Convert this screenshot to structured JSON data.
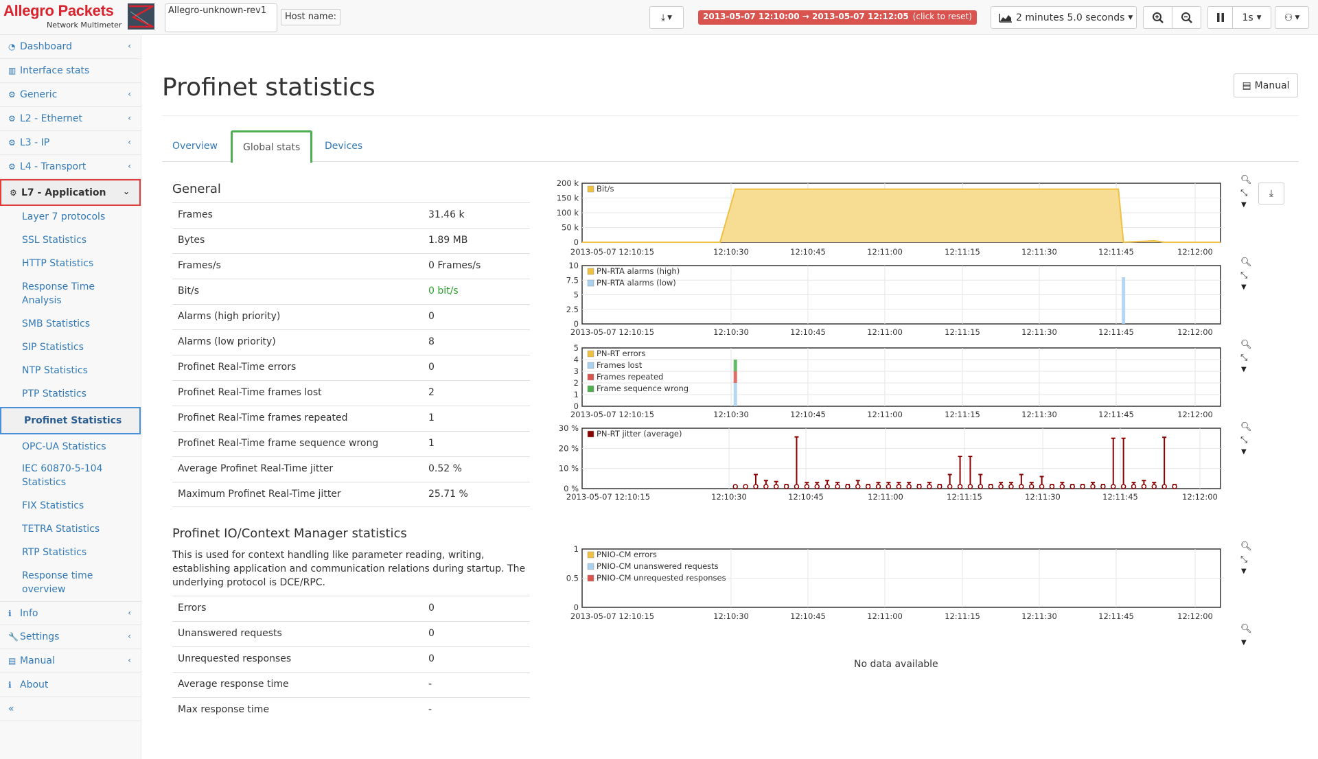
{
  "app": {
    "brand": "Allegro Packets",
    "subtitle": "Network Multimeter",
    "device_name": "Allegro-unknown-rev1",
    "host_label": "Host name:",
    "time_range": "2013-05-07 12:10:00 → 2013-05-07 12:12:05",
    "time_reset": "(click to reset)",
    "duration": "2 minutes 5.0 seconds",
    "interval": "1s"
  },
  "sidebar": {
    "items": [
      {
        "label": "Dashboard",
        "icon": "dashboard-icon"
      },
      {
        "label": "Interface stats",
        "icon": "bar-chart-icon"
      },
      {
        "label": "Generic",
        "icon": "gear-icon"
      },
      {
        "label": "L2 - Ethernet",
        "icon": "gear-icon"
      },
      {
        "label": "L3 - IP",
        "icon": "gear-icon"
      },
      {
        "label": "L4 - Transport",
        "icon": "gear-icon"
      },
      {
        "label": "L7 - Application",
        "icon": "gear-icon"
      },
      {
        "label": "Info",
        "icon": "info-icon"
      },
      {
        "label": "Settings",
        "icon": "wrench-icon"
      },
      {
        "label": "Manual",
        "icon": "book-icon"
      },
      {
        "label": "About",
        "icon": "info-icon"
      }
    ],
    "sub": [
      "Layer 7 protocols",
      "SSL Statistics",
      "HTTP Statistics",
      "Response Time Analysis",
      "SMB Statistics",
      "SIP Statistics",
      "NTP Statistics",
      "PTP Statistics",
      "Profinet Statistics",
      "OPC-UA Statistics",
      "IEC 60870-5-104 Statistics",
      "FIX Statistics",
      "TETRA Statistics",
      "RTP Statistics",
      "Response time overview"
    ],
    "collapse": "«"
  },
  "page": {
    "title": "Profinet statistics",
    "manual_button": "Manual",
    "tabs": [
      "Overview",
      "Global stats",
      "Devices"
    ]
  },
  "general": {
    "title": "General",
    "rows": [
      {
        "k": "Frames",
        "v": "31.46 k"
      },
      {
        "k": "Bytes",
        "v": "1.89 MB"
      },
      {
        "k": "Frames/s",
        "v": "0 Frames/s"
      },
      {
        "k": "Bit/s",
        "v": "0 bit/s"
      },
      {
        "k": "Alarms (high priority)",
        "v": "0"
      },
      {
        "k": "Alarms (low priority)",
        "v": "8"
      },
      {
        "k": "Profinet Real-Time errors",
        "v": "0"
      },
      {
        "k": "Profinet Real-Time frames lost",
        "v": "2"
      },
      {
        "k": "Profinet Real-Time frames repeated",
        "v": "1"
      },
      {
        "k": "Profinet Real-Time frame sequence wrong",
        "v": "1"
      },
      {
        "k": "Average Profinet Real-Time jitter",
        "v": "0.52 %"
      },
      {
        "k": "Maximum Profinet Real-Time jitter",
        "v": "25.71 %"
      }
    ]
  },
  "iocm": {
    "title": "Profinet IO/Context Manager statistics",
    "description": "This is used for context handling like parameter reading, writing, establishing application and communication relations during startup. The underlying protocol is DCE/RPC.",
    "rows": [
      {
        "k": "Errors",
        "v": "0"
      },
      {
        "k": "Unanswered requests",
        "v": "0"
      },
      {
        "k": "Unrequested responses",
        "v": "0"
      },
      {
        "k": "Average response time",
        "v": "-"
      },
      {
        "k": "Max response time",
        "v": "-"
      }
    ]
  },
  "no_data": "No data available",
  "colors": {
    "accent": "#337ab7",
    "yellow": "#f0c040",
    "lightblue": "#a8d0f0",
    "red": "#d9534f",
    "green": "#4cae4c",
    "darkred": "#8b0000"
  },
  "chart_data": [
    {
      "type": "area",
      "x_ticks": [
        "2013-05-07 12:10:15",
        "12:10:30",
        "12:10:45",
        "12:11:00",
        "12:11:15",
        "12:11:30",
        "12:11:45",
        "12:12:00"
      ],
      "y_ticks": [
        "0",
        "50 k",
        "100 k",
        "150 k",
        "200 k"
      ],
      "ylim": [
        0,
        200000
      ],
      "series": [
        {
          "name": "Bit/s",
          "color": "#f0c040",
          "points": [
            [
              0,
              0
            ],
            [
              27,
              0
            ],
            [
              30,
              180000
            ],
            [
              105,
              180000
            ],
            [
              106,
              0
            ],
            [
              112,
              5000
            ],
            [
              114,
              0
            ],
            [
              125,
              0
            ]
          ]
        }
      ]
    },
    {
      "type": "bar",
      "x_ticks": [
        "2013-05-07 12:10:15",
        "12:10:30",
        "12:10:45",
        "12:11:00",
        "12:11:15",
        "12:11:30",
        "12:11:45",
        "12:12:00"
      ],
      "y_ticks": [
        "0",
        "2.5",
        "5",
        "7.5",
        "10"
      ],
      "ylim": [
        0,
        10
      ],
      "series": [
        {
          "name": "PN-RTA alarms (high)",
          "color": "#f0c040",
          "points": []
        },
        {
          "name": "PN-RTA alarms (low)",
          "color": "#a8d0f0",
          "points": [
            [
              106,
              8
            ]
          ]
        }
      ]
    },
    {
      "type": "bar",
      "x_ticks": [
        "2013-05-07 12:10:15",
        "12:10:30",
        "12:10:45",
        "12:11:00",
        "12:11:15",
        "12:11:30",
        "12:11:45",
        "12:12:00"
      ],
      "y_ticks": [
        "0",
        "1",
        "2",
        "3",
        "4",
        "5"
      ],
      "ylim": [
        0,
        5
      ],
      "series": [
        {
          "name": "PN-RT errors",
          "color": "#f0c040",
          "points": []
        },
        {
          "name": "Frames lost",
          "color": "#a8d0f0",
          "points": [
            [
              30,
              2
            ]
          ]
        },
        {
          "name": "Frames repeated",
          "color": "#d9534f",
          "points": [
            [
              30,
              1
            ]
          ]
        },
        {
          "name": "Frame sequence wrong",
          "color": "#4cae4c",
          "points": [
            [
              30,
              1
            ]
          ]
        }
      ]
    },
    {
      "type": "scatter",
      "x_ticks": [
        "2013-05-07 12:10:15",
        "12:10:30",
        "12:10:45",
        "12:11:00",
        "12:11:15",
        "12:11:30",
        "12:11:45",
        "12:12:00"
      ],
      "y_ticks": [
        "0 %",
        "10 %",
        "20 %",
        "30 %"
      ],
      "ylim": [
        0,
        30
      ],
      "series": [
        {
          "name": "PN-RT jitter (average)",
          "color": "#8b0000",
          "points": [
            [
              30,
              1
            ],
            [
              32,
              1.5
            ],
            [
              34,
              7
            ],
            [
              36,
              4
            ],
            [
              38,
              3.5
            ],
            [
              40,
              2
            ],
            [
              42,
              25.7
            ],
            [
              44,
              3
            ],
            [
              46,
              3
            ],
            [
              48,
              4
            ],
            [
              50,
              3
            ],
            [
              52,
              2
            ],
            [
              54,
              4
            ],
            [
              56,
              2
            ],
            [
              58,
              3
            ],
            [
              60,
              3
            ],
            [
              62,
              3
            ],
            [
              64,
              3
            ],
            [
              66,
              2
            ],
            [
              68,
              3
            ],
            [
              70,
              2
            ],
            [
              72,
              7
            ],
            [
              74,
              16
            ],
            [
              76,
              16
            ],
            [
              78,
              7
            ],
            [
              80,
              2
            ],
            [
              82,
              3
            ],
            [
              84,
              3
            ],
            [
              86,
              7
            ],
            [
              88,
              3
            ],
            [
              90,
              6
            ],
            [
              92,
              2
            ],
            [
              94,
              3
            ],
            [
              96,
              2
            ],
            [
              98,
              2
            ],
            [
              100,
              3
            ],
            [
              102,
              2
            ],
            [
              104,
              25
            ],
            [
              106,
              25
            ],
            [
              108,
              3
            ],
            [
              110,
              4
            ],
            [
              112,
              3
            ],
            [
              114,
              25.5
            ],
            [
              116,
              2
            ]
          ]
        }
      ]
    },
    {
      "type": "bar",
      "x_ticks": [
        "2013-05-07 12:10:15",
        "12:10:30",
        "12:10:45",
        "12:11:00",
        "12:11:15",
        "12:11:30",
        "12:11:45",
        "12:12:00"
      ],
      "y_ticks": [
        "0",
        "0.5",
        "1"
      ],
      "ylim": [
        0,
        1
      ],
      "series": [
        {
          "name": "PNIO-CM errors",
          "color": "#f0c040",
          "points": []
        },
        {
          "name": "PNIO-CM unanswered requests",
          "color": "#a8d0f0",
          "points": []
        },
        {
          "name": "PNIO-CM unrequested responses",
          "color": "#d9534f",
          "points": []
        }
      ]
    }
  ]
}
